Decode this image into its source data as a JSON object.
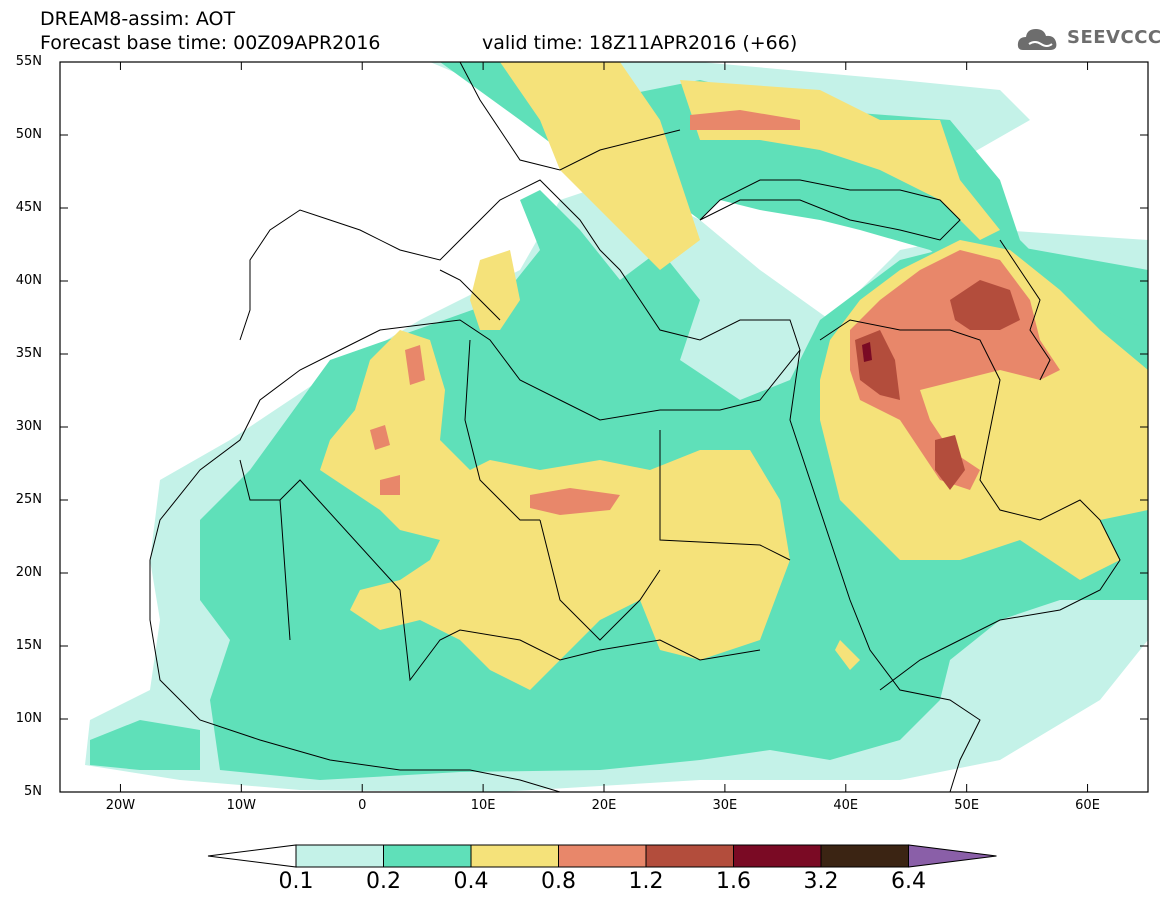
{
  "header": {
    "line1": "DREAM8-assim: AOT",
    "line2": "Forecast base time: 00Z09APR2016",
    "line2b": "valid time: 18Z11APR2016 (+66)",
    "logo_text": "SEEVCCC"
  },
  "map": {
    "lat_labels": [
      "55N",
      "50N",
      "45N",
      "40N",
      "35N",
      "30N",
      "25N",
      "20N",
      "15N",
      "10N",
      "5N"
    ],
    "lon_labels": [
      "20W",
      "10W",
      "0",
      "10E",
      "20E",
      "30E",
      "40E",
      "50E",
      "60E"
    ],
    "lon_range": [
      -25,
      65
    ],
    "lat_range": [
      5,
      55
    ]
  },
  "colorbar": {
    "levels": [
      "0.1",
      "0.2",
      "0.4",
      "0.8",
      "1.2",
      "1.6",
      "3.2",
      "6.4"
    ],
    "colors": [
      "#c4f2e8",
      "#5fe0b9",
      "#f5e27a",
      "#e8876a",
      "#b34d3c",
      "#7a0a24",
      "#3b2413",
      "#8a5fa8"
    ]
  },
  "colors": {
    "level1": "#c4f2e8",
    "level2": "#5fe0b9",
    "level3": "#f5e27a",
    "level4": "#e8876a",
    "level5": "#b34d3c",
    "level6": "#7a0a24"
  }
}
